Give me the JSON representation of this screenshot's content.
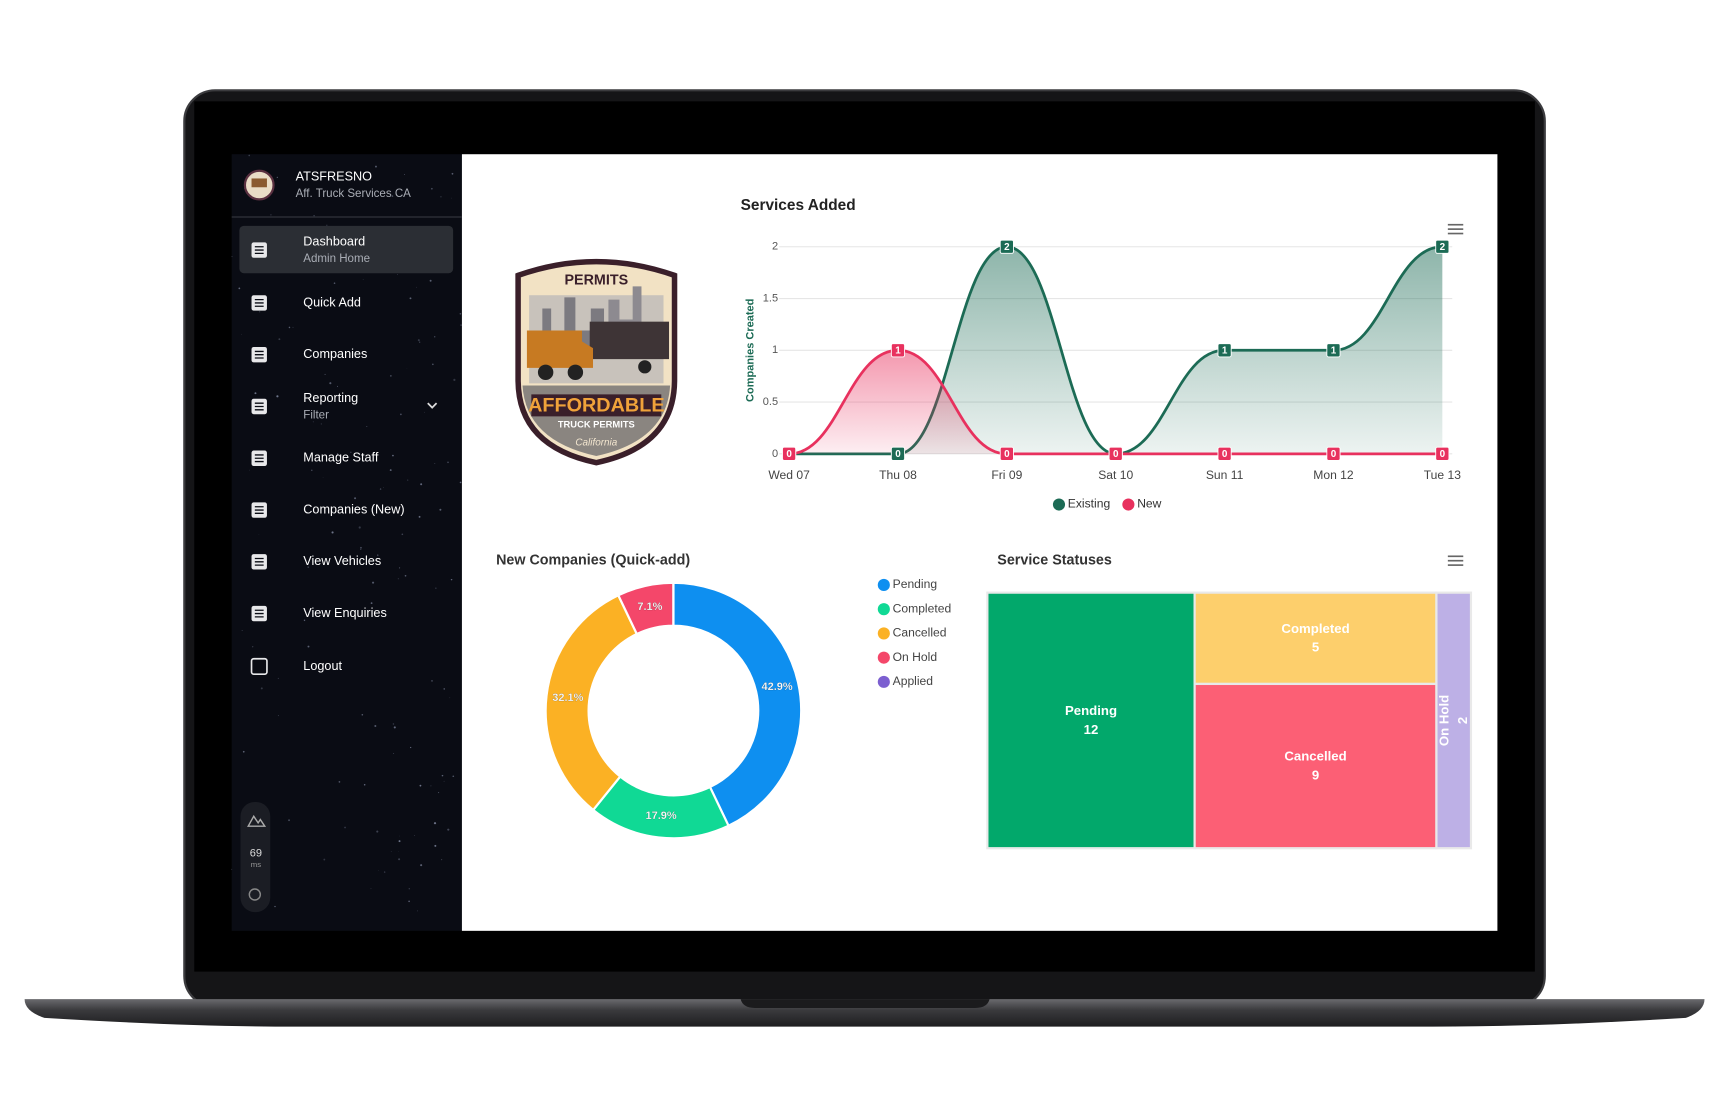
{
  "sidebar": {
    "org": "ATSFRESNO",
    "org_sub": "Aff. Truck Services CA",
    "nav": [
      {
        "label": "Dashboard",
        "sub": "Admin Home"
      },
      {
        "label": "Quick Add"
      },
      {
        "label": "Companies"
      },
      {
        "label": "Reporting",
        "sub": "Filter"
      },
      {
        "label": "Manage Staff"
      },
      {
        "label": "Companies (New)"
      },
      {
        "label": "View Vehicles"
      },
      {
        "label": "View Enquiries"
      },
      {
        "label": "Logout"
      }
    ],
    "latency": "69",
    "latency_unit": "ms"
  },
  "logo": {
    "top": "PERMITS",
    "main": "AFFORDABLE",
    "sub": "TRUCK PERMITS",
    "state": "California"
  },
  "chart_data": [
    {
      "type": "line",
      "title": "Services Added",
      "y_label": "Companies Created",
      "categories": [
        "Wed 07",
        "Thu 08",
        "Fri 09",
        "Sat 10",
        "Sun 11",
        "Mon 12",
        "Tue 13"
      ],
      "series": [
        {
          "name": "Existing",
          "color": "#1c6b55",
          "values": [
            0,
            0,
            2,
            0,
            1,
            1,
            2
          ]
        },
        {
          "name": "New",
          "color": "#e8315e",
          "values": [
            0,
            1,
            0,
            0,
            0,
            0,
            0
          ]
        }
      ],
      "ylim": [
        0,
        2
      ],
      "yticks": [
        0,
        0.5,
        1,
        1.5,
        2
      ],
      "grid": true
    },
    {
      "type": "pie",
      "title": "New Companies (Quick-add)",
      "categories": [
        "Pending",
        "Completed",
        "Cancelled",
        "On Hold",
        "Applied"
      ],
      "values": [
        42.9,
        17.9,
        32.1,
        7.1,
        0
      ],
      "value_labels": [
        "42.9%",
        "17.9%",
        "32.1%",
        "7.1%",
        null
      ],
      "colors": [
        "#0e8ff0",
        "#10d995",
        "#fbb124",
        "#f4476a",
        "#7c5fd0"
      ]
    },
    {
      "type": "treemap",
      "title": "Service Statuses",
      "categories": [
        "Pending",
        "Completed",
        "Cancelled",
        "On Hold"
      ],
      "values": [
        12,
        5,
        9,
        2
      ],
      "colors": [
        "#02a86b",
        "#fdcf6c",
        "#fc5f75",
        "#bdb0e6"
      ]
    }
  ]
}
